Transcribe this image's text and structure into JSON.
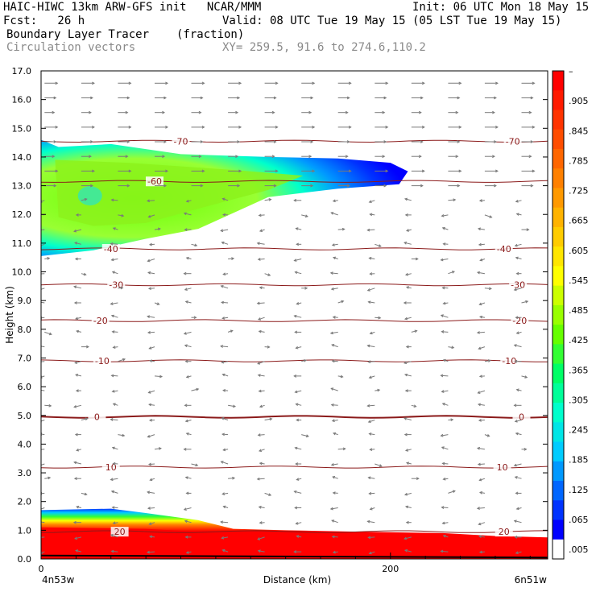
{
  "header": {
    "line1_left": "HAIC-HIWC 13km ARW-GFS init   NCAR/MMM",
    "line1_right": "Init: 06 UTC Mon 18 May 15",
    "line2_left": "Fcst:   26 h",
    "line2_right": "Valid: 08 UTC Tue 19 May 15 (05 LST Tue 19 May 15)",
    "line3_field": "Boundary Layer Tracer",
    "line3_units": "(fraction)",
    "line4_field": "Circulation vectors",
    "line4_xy": "XY= 259.5, 91.6 to 274.6,110.2"
  },
  "colors": {
    "isotherm": "#8b1a1a",
    "vector": "#7a7a7a",
    "frame": "#000000"
  },
  "chart_data": {
    "type": "heatmap",
    "title": "Boundary Layer Tracer",
    "units": "(fraction)",
    "xlabel": "Distance (km)",
    "ylabel": "Height (km)",
    "xlim": [
      0,
      290
    ],
    "ylim": [
      0,
      17
    ],
    "x_ticks": [
      {
        "value": 0,
        "label": "0"
      },
      {
        "value": 200,
        "label": "200"
      }
    ],
    "y_ticks": [
      "0.0",
      "1.0",
      "2.0",
      "3.0",
      "4.0",
      "5.0",
      "6.0",
      "7.0",
      "8.0",
      "9.0",
      "10.0",
      "11.0",
      "12.0",
      "13.0",
      "14.0",
      "15.0",
      "16.0",
      "17.0"
    ],
    "x_endpoints": {
      "left": "4n53w",
      "right": "6n51w"
    },
    "colorbar": {
      "labels": [
        "–",
        ".905",
        ".845",
        ".785",
        ".725",
        ".665",
        ".605",
        ".545",
        ".485",
        ".425",
        ".365",
        ".305",
        ".245",
        ".185",
        ".125",
        ".065",
        ".005"
      ],
      "colors": [
        "#ff0000",
        "#ff1a00",
        "#ff3300",
        "#ff4d00",
        "#ff6600",
        "#ff8000",
        "#ff9900",
        "#ffb300",
        "#ffcc00",
        "#ffe600",
        "#ffff00",
        "#ccff00",
        "#99ff00",
        "#66ff00",
        "#33ff33",
        "#00ff66",
        "#00ff99",
        "#00ffcc",
        "#00e6e6",
        "#00ccff",
        "#0099ff",
        "#0066ff",
        "#0033ff",
        "#0000ff",
        "#ffffff"
      ]
    },
    "plume_upper": {
      "region": "y 10.5-14.6 km, x 0-~210 km",
      "max_fraction": 0.35
    },
    "plume_lower": {
      "region": "y 0-1.7 km, x 0-290 km",
      "max_fraction": 0.905
    },
    "isotherms": [
      {
        "label": "-70",
        "height": 14.55,
        "label_positions": [
          80,
          270
        ]
      },
      {
        "label": "-60",
        "height": 13.15,
        "label_positions": [
          65
        ]
      },
      {
        "label": "-40",
        "height": 10.8,
        "label_positions": [
          40,
          265
        ]
      },
      {
        "label": "-30",
        "height": 9.55,
        "label_positions": [
          43,
          273
        ]
      },
      {
        "label": "-20",
        "height": 8.3,
        "label_positions": [
          34,
          274
        ]
      },
      {
        "label": "-10",
        "height": 6.9,
        "label_positions": [
          35,
          268
        ]
      },
      {
        "label": "0",
        "height": 4.95,
        "label_positions": [
          32,
          275
        ]
      },
      {
        "label": "10",
        "height": 3.2,
        "label_positions": [
          40,
          264
        ]
      },
      {
        "label": "20",
        "height": 0.95,
        "label_positions": [
          45,
          265
        ]
      }
    ]
  }
}
